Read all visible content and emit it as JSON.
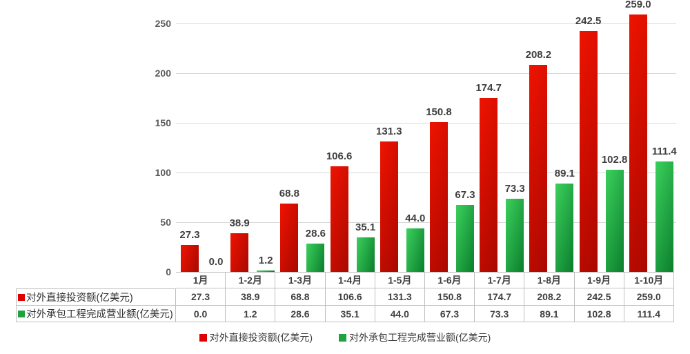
{
  "chart_data": {
    "type": "bar",
    "title": "",
    "xlabel": "",
    "ylabel": "",
    "categories": [
      "1月",
      "1-2月",
      "1-3月",
      "1-4月",
      "1-5月",
      "1-6月",
      "1-7月",
      "1-8月",
      "1-9月",
      "1-10月"
    ],
    "series": [
      {
        "name": "对外直接投资额(亿美元)",
        "values": [
          27.3,
          38.9,
          68.8,
          106.6,
          131.3,
          150.8,
          174.7,
          208.2,
          242.5,
          259.0
        ],
        "color": "#dd0f00",
        "gradient": [
          "#ef1300",
          "#a90800"
        ],
        "legend_color": "#dd0000"
      },
      {
        "name": "对外承包工程完成营业额(亿美元)",
        "values": [
          0.0,
          1.2,
          28.6,
          35.1,
          44.0,
          67.3,
          73.3,
          89.1,
          102.8,
          111.4
        ],
        "color": "#1fa33c",
        "gradient": [
          "#3bd05c",
          "#0b7e2d"
        ],
        "legend_color": "#1fa33c"
      }
    ],
    "yticks": [
      0,
      50,
      100,
      150,
      200,
      250
    ],
    "ylim": [
      0,
      275
    ],
    "grid": true,
    "value_labels": true,
    "value_label_decimals": 1,
    "legend_position": "bottom",
    "data_table_shown": true
  },
  "colors": {
    "gridline": "#d9d9d9",
    "axis_text": "#595959",
    "value_label_text": "#3f3f3f",
    "table_border": "#bfbfbf",
    "table_text": "#404040",
    "background": "#ffffff"
  }
}
